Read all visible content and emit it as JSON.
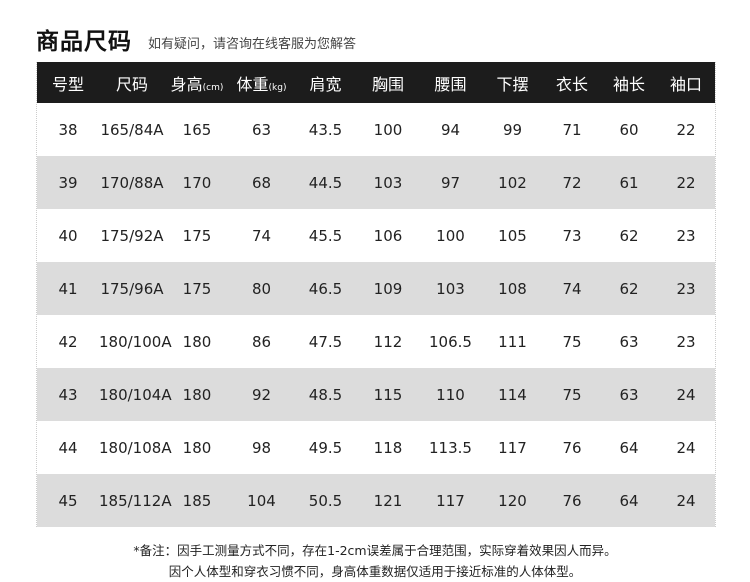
{
  "title": "商品尺码",
  "subtitle": "如有疑问，请咨询在线客服为您解答",
  "columns": [
    {
      "label": "号型",
      "unit": ""
    },
    {
      "label": "尺码",
      "unit": ""
    },
    {
      "label": "身高",
      "unit": "(cm)"
    },
    {
      "label": "体重",
      "unit": "(kg)"
    },
    {
      "label": "肩宽",
      "unit": ""
    },
    {
      "label": "胸围",
      "unit": ""
    },
    {
      "label": "腰围",
      "unit": ""
    },
    {
      "label": "下摆",
      "unit": ""
    },
    {
      "label": "衣长",
      "unit": ""
    },
    {
      "label": "袖长",
      "unit": ""
    },
    {
      "label": "袖口",
      "unit": ""
    }
  ],
  "rows": [
    [
      "38",
      "165/84A",
      "165",
      "63",
      "43.5",
      "100",
      "94",
      "99",
      "71",
      "60",
      "22"
    ],
    [
      "39",
      "170/88A",
      "170",
      "68",
      "44.5",
      "103",
      "97",
      "102",
      "72",
      "61",
      "22"
    ],
    [
      "40",
      "175/92A",
      "175",
      "74",
      "45.5",
      "106",
      "100",
      "105",
      "73",
      "62",
      "23"
    ],
    [
      "41",
      "175/96A",
      "175",
      "80",
      "46.5",
      "109",
      "103",
      "108",
      "74",
      "62",
      "23"
    ],
    [
      "42",
      "180/100A",
      "180",
      "86",
      "47.5",
      "112",
      "106.5",
      "111",
      "75",
      "63",
      "23"
    ],
    [
      "43",
      "180/104A",
      "180",
      "92",
      "48.5",
      "115",
      "110",
      "114",
      "75",
      "63",
      "24"
    ],
    [
      "44",
      "180/108A",
      "180",
      "98",
      "49.5",
      "118",
      "113.5",
      "117",
      "76",
      "64",
      "24"
    ],
    [
      "45",
      "185/112A",
      "185",
      "104",
      "50.5",
      "121",
      "117",
      "120",
      "76",
      "64",
      "24"
    ]
  ],
  "notes": [
    "*备注：因手工测量方式不同，存在1-2cm误差属于合理范围，实际穿着效果因人而异。",
    "因个人体型和穿衣习惯不同，身高体重数据仅适用于接近标准的人体体型。"
  ],
  "colors": {
    "header_bg": "#1c1c1c",
    "alt_row_bg": "#dcdcdc"
  }
}
